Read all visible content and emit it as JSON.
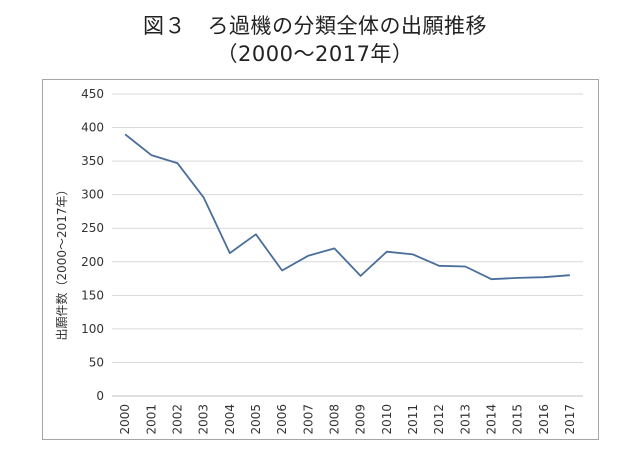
{
  "title_line1": "図３　ろ過機の分類全体の出願推移",
  "title_line2": "（2000～2017年）",
  "chart_data": {
    "type": "line",
    "title": "図３　ろ過機の分類全体の出願推移（2000～2017年）",
    "xlabel": "",
    "ylabel": "出願件数（2000～2017年）",
    "ylim": [
      0,
      450
    ],
    "yticks": [
      0,
      50,
      100,
      150,
      200,
      250,
      300,
      350,
      400,
      450
    ],
    "grid": "horizontal",
    "legend": "none",
    "categories": [
      "2000",
      "2001",
      "2002",
      "2003",
      "2004",
      "2005",
      "2006",
      "2007",
      "2008",
      "2009",
      "2010",
      "2011",
      "2012",
      "2013",
      "2014",
      "2015",
      "2016",
      "2017"
    ],
    "values": [
      390,
      359,
      347,
      296,
      213,
      241,
      187,
      209,
      220,
      179,
      215,
      211,
      194,
      193,
      174,
      176,
      177,
      180
    ],
    "line_color": "#4a6e9b",
    "grid_color": "#d9d9d9"
  }
}
